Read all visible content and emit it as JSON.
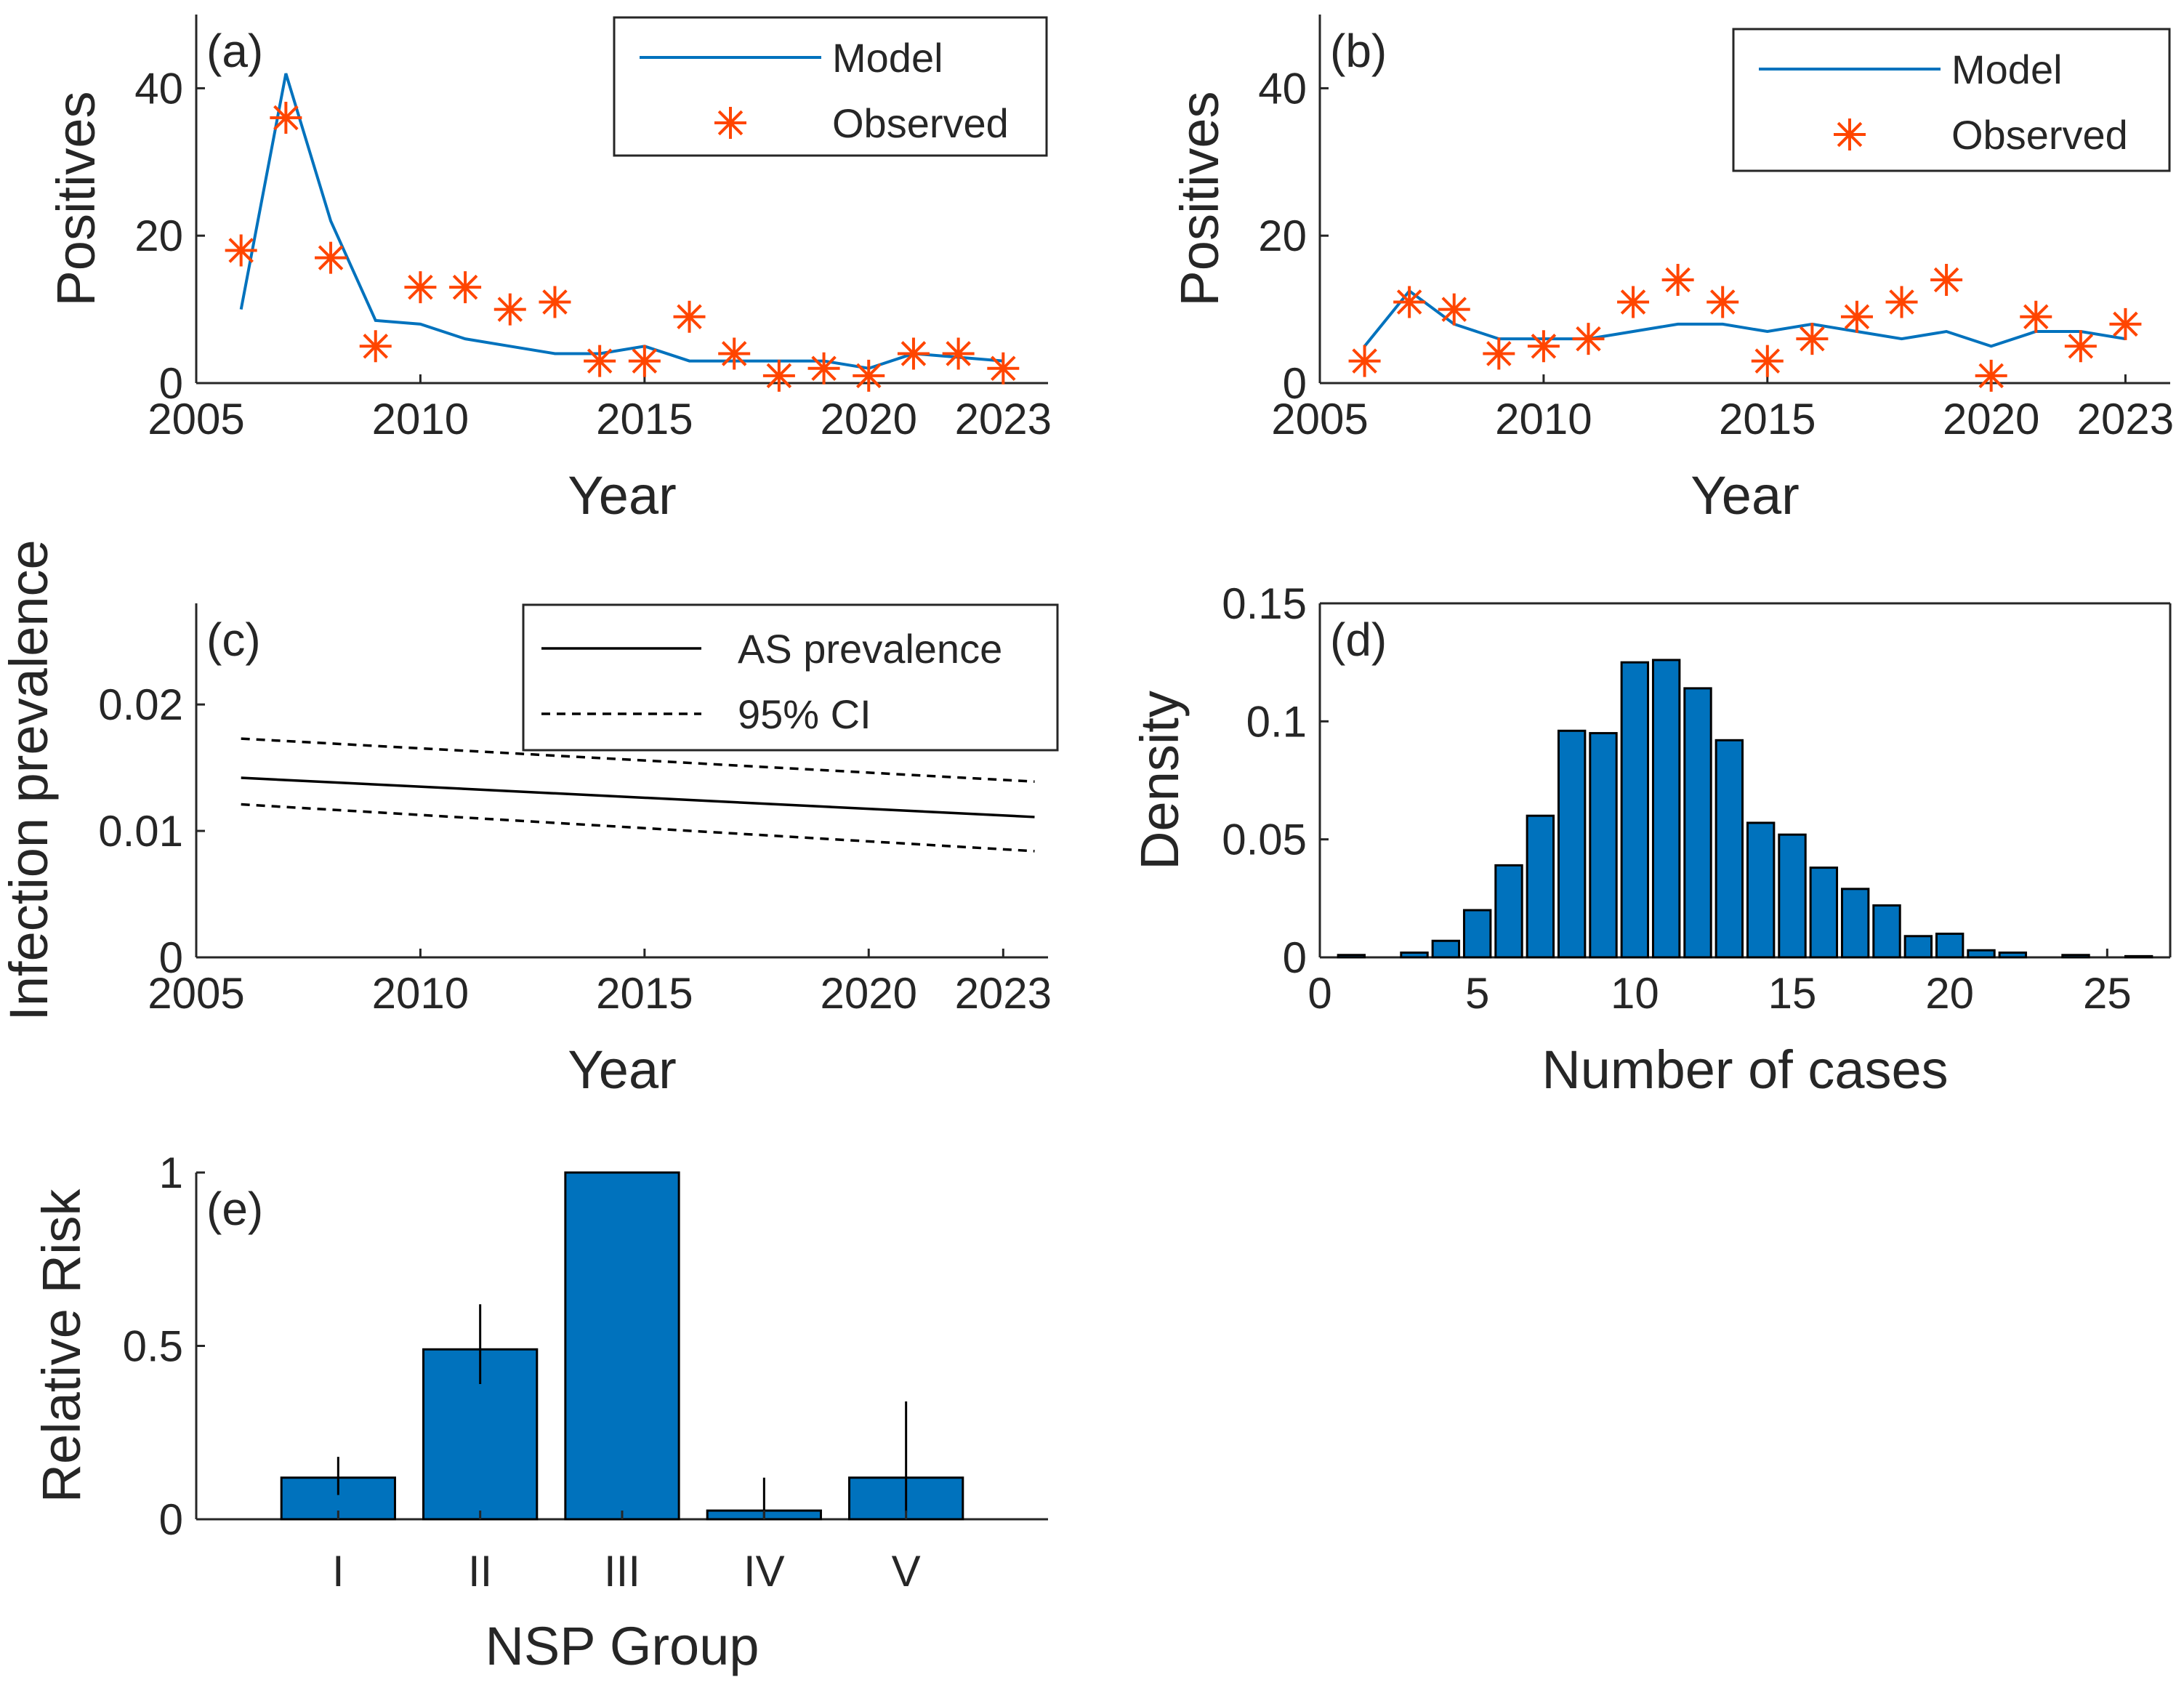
{
  "colors": {
    "model_line": "#0072BD",
    "observed_marker": "#FF4500",
    "bar_fill": "#0072BD",
    "axis": "#262626"
  },
  "chart_data": [
    {
      "id": "a",
      "type": "line",
      "panel_label": "(a)",
      "xlabel": "Year",
      "ylabel": "Positives",
      "xlim": [
        2005,
        2024
      ],
      "ylim": [
        0,
        50
      ],
      "xticks": [
        2005,
        2010,
        2015,
        2020,
        2023
      ],
      "yticks": [
        0,
        20,
        40
      ],
      "legend": [
        "Model",
        "Observed"
      ],
      "legend_position": "top-right",
      "series": [
        {
          "name": "Model",
          "style": "line",
          "x": [
            2006,
            2007,
            2008,
            2009,
            2010,
            2011,
            2012,
            2013,
            2014,
            2015,
            2016,
            2017,
            2018,
            2019,
            2020,
            2021,
            2022,
            2023
          ],
          "y": [
            10,
            42,
            22,
            8.5,
            8,
            6,
            5,
            4,
            4,
            5,
            3,
            3,
            3,
            3,
            2,
            4,
            3.5,
            3
          ]
        },
        {
          "name": "Observed",
          "style": "marker",
          "x": [
            2006,
            2007,
            2008,
            2009,
            2010,
            2011,
            2012,
            2013,
            2014,
            2015,
            2016,
            2017,
            2018,
            2019,
            2020,
            2021,
            2022,
            2023
          ],
          "y": [
            18,
            36,
            17,
            5,
            13,
            13,
            10,
            11,
            3,
            3,
            9,
            4,
            1,
            2,
            1,
            4,
            4,
            2
          ]
        }
      ]
    },
    {
      "id": "b",
      "type": "line",
      "panel_label": "(b)",
      "xlabel": "Year",
      "ylabel": "Positives",
      "xlim": [
        2005,
        2024
      ],
      "ylim": [
        0,
        50
      ],
      "xticks": [
        2005,
        2010,
        2015,
        2020,
        2023
      ],
      "yticks": [
        0,
        20,
        40
      ],
      "legend": [
        "Model",
        "Observed"
      ],
      "legend_position": "top-right",
      "series": [
        {
          "name": "Model",
          "style": "line",
          "x": [
            2006,
            2007,
            2008,
            2009,
            2010,
            2011,
            2012,
            2013,
            2014,
            2015,
            2016,
            2017,
            2018,
            2019,
            2020,
            2021,
            2022,
            2023
          ],
          "y": [
            5,
            12.5,
            8,
            6,
            6,
            6,
            7,
            8,
            8,
            7,
            8,
            7,
            6,
            7,
            5,
            7,
            7,
            6
          ]
        },
        {
          "name": "Observed",
          "style": "marker",
          "x": [
            2006,
            2007,
            2008,
            2009,
            2010,
            2011,
            2012,
            2013,
            2014,
            2015,
            2016,
            2017,
            2018,
            2019,
            2020,
            2021,
            2022,
            2023
          ],
          "y": [
            3,
            11,
            10,
            4,
            5,
            6,
            11,
            14,
            11,
            3,
            6,
            9,
            11,
            14,
            1,
            9,
            5,
            8
          ]
        }
      ]
    },
    {
      "id": "c",
      "type": "line",
      "panel_label": "(c)",
      "xlabel": "Year",
      "ylabel": "Infection prevalence",
      "xlim": [
        2005,
        2024
      ],
      "ylim": [
        0,
        0.028
      ],
      "xticks": [
        2005,
        2010,
        2015,
        2020,
        2023
      ],
      "yticks": [
        0,
        0.01,
        0.02
      ],
      "ytick_labels": [
        "0",
        "0.01",
        "0.02"
      ],
      "legend": [
        "AS prevalence",
        "95% CI"
      ],
      "legend_position": "top-right",
      "series": [
        {
          "name": "AS prevalence",
          "style": "solid",
          "x": [
            2006,
            2023.7
          ],
          "y": [
            0.0142,
            0.0111
          ]
        },
        {
          "name": "95% CI",
          "style": "dashed",
          "x": [
            2006,
            2023.7
          ],
          "y": [
            0.0173,
            0.0139
          ]
        },
        {
          "name": "95% CI lower",
          "style": "dashed",
          "x": [
            2006,
            2023.7
          ],
          "y": [
            0.0121,
            0.0084
          ]
        }
      ]
    },
    {
      "id": "d",
      "type": "bar",
      "panel_label": "(d)",
      "xlabel": "Number of cases",
      "ylabel": "Density",
      "xlim": [
        0,
        27
      ],
      "ylim": [
        0,
        0.15
      ],
      "xticks": [
        0,
        5,
        10,
        15,
        20,
        25
      ],
      "yticks": [
        0,
        0.05,
        0.1,
        0.15
      ],
      "ytick_labels": [
        "0",
        "0.05",
        "0.1",
        "0.15"
      ],
      "categories": [
        1,
        2,
        3,
        4,
        5,
        6,
        7,
        8,
        9,
        10,
        11,
        12,
        13,
        14,
        15,
        16,
        17,
        18,
        19,
        20,
        21,
        22,
        23,
        24,
        25,
        26
      ],
      "values": [
        0.001,
        0,
        0.002,
        0.007,
        0.02,
        0.039,
        0.06,
        0.096,
        0.095,
        0.125,
        0.126,
        0.114,
        0.092,
        0.057,
        0.052,
        0.038,
        0.029,
        0.022,
        0.009,
        0.01,
        0.003,
        0.002,
        0,
        0.001,
        0,
        0.0005
      ]
    },
    {
      "id": "e",
      "type": "bar",
      "panel_label": "(e)",
      "xlabel": "NSP Group",
      "ylabel": "Relative Risk",
      "ylim": [
        0,
        1
      ],
      "yticks": [
        0,
        0.5,
        1
      ],
      "ytick_labels": [
        "0",
        "0.5",
        "1"
      ],
      "categories": [
        "I",
        "II",
        "III",
        "IV",
        "V"
      ],
      "values": [
        0.12,
        0.49,
        1.0,
        0.025,
        0.12
      ],
      "error_low": [
        0.07,
        0.39,
        1.0,
        0.0,
        0.02
      ],
      "error_high": [
        0.18,
        0.62,
        1.0,
        0.12,
        0.34
      ]
    }
  ]
}
